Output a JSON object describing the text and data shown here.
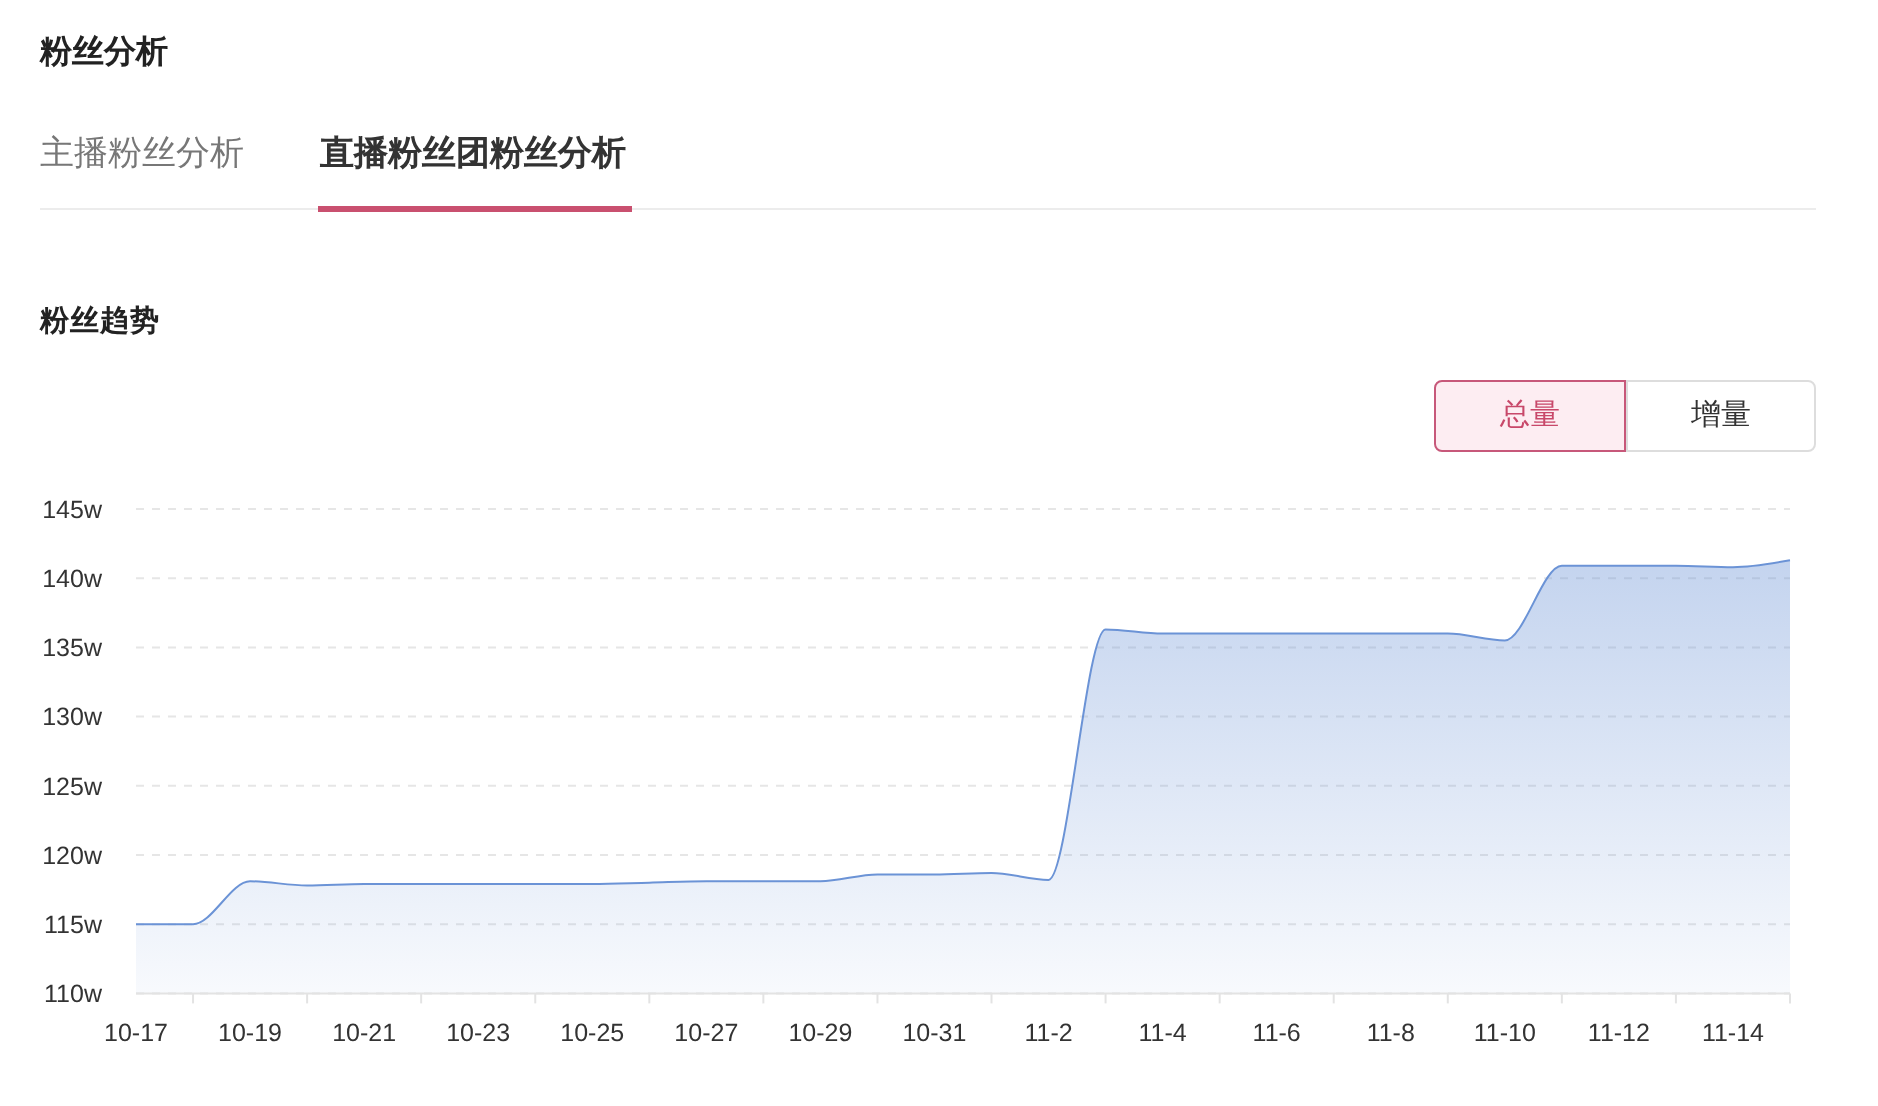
{
  "chart_data": {
    "type": "area",
    "title": "粉丝分析",
    "subtitle": "粉丝趋势",
    "annotations": [
      "主播粉丝分析",
      "直播粉丝团粉丝分析",
      "总量",
      "增量"
    ],
    "categories": [
      "10-17",
      null,
      "10-19",
      null,
      "10-21",
      null,
      "10-23",
      null,
      "10-25",
      null,
      "10-27",
      null,
      "10-29",
      null,
      "10-31",
      null,
      "11-2",
      null,
      "11-4",
      null,
      "11-6",
      null,
      "11-8",
      null,
      "11-10",
      null,
      "11-12",
      null,
      "11-14",
      null
    ],
    "values": [
      115.0,
      115.0,
      118.1,
      117.8,
      117.9,
      117.9,
      117.9,
      117.9,
      117.9,
      118.0,
      118.1,
      118.1,
      118.1,
      118.6,
      118.6,
      118.7,
      118.2,
      136.3,
      136.0,
      136.0,
      136.0,
      136.0,
      136.0,
      136.0,
      135.5,
      140.9,
      140.9,
      140.9,
      140.8,
      141.3
    ],
    "color": "#6b93d6",
    "ylim": [
      110,
      145
    ],
    "yticks": [
      {
        "value": 110,
        "label": "110w"
      },
      {
        "value": 115,
        "label": "115w"
      },
      {
        "value": 120,
        "label": "120w"
      },
      {
        "value": 125,
        "label": "125w"
      },
      {
        "value": 130,
        "label": "130w"
      },
      {
        "value": 135,
        "label": "135w"
      },
      {
        "value": 140,
        "label": "140w"
      },
      {
        "value": 145,
        "label": "145w"
      }
    ],
    "grid": "y"
  }
}
